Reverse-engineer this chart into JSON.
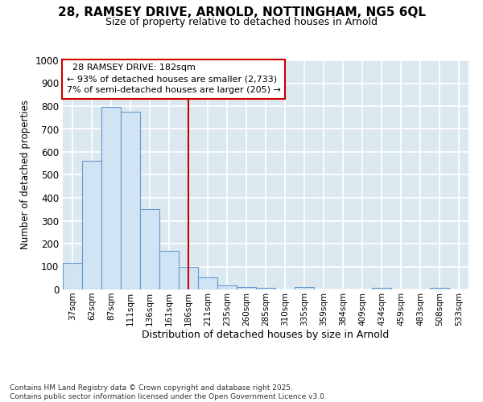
{
  "title_line1": "28, RAMSEY DRIVE, ARNOLD, NOTTINGHAM, NG5 6QL",
  "title_line2": "Size of property relative to detached houses in Arnold",
  "xlabel": "Distribution of detached houses by size in Arnold",
  "ylabel": "Number of detached properties",
  "categories": [
    "37sqm",
    "62sqm",
    "87sqm",
    "111sqm",
    "136sqm",
    "161sqm",
    "186sqm",
    "211sqm",
    "235sqm",
    "260sqm",
    "285sqm",
    "310sqm",
    "335sqm",
    "359sqm",
    "384sqm",
    "409sqm",
    "434sqm",
    "459sqm",
    "483sqm",
    "508sqm",
    "533sqm"
  ],
  "values": [
    115,
    560,
    795,
    775,
    350,
    168,
    97,
    52,
    18,
    12,
    7,
    0,
    10,
    0,
    0,
    0,
    6,
    0,
    0,
    6,
    0
  ],
  "bar_color": "#d0e4f4",
  "bar_edge_color": "#6699cc",
  "vline_x_index": 6,
  "vline_color": "#cc0000",
  "vline_label": "28 RAMSEY DRIVE: 182sqm",
  "annotation_pct_left": "93% of detached houses are smaller (2,733)",
  "annotation_pct_right": "7% of semi-detached houses are larger (205)",
  "ylim": [
    0,
    1000
  ],
  "yticks": [
    0,
    100,
    200,
    300,
    400,
    500,
    600,
    700,
    800,
    900,
    1000
  ],
  "axes_bg_color": "#dce8f0",
  "fig_bg_color": "#ffffff",
  "grid_color": "#ffffff",
  "footnote": "Contains HM Land Registry data © Crown copyright and database right 2025.\nContains public sector information licensed under the Open Government Licence v3.0.",
  "annotation_box_facecolor": "#ffffff",
  "annotation_box_edgecolor": "#cc0000"
}
